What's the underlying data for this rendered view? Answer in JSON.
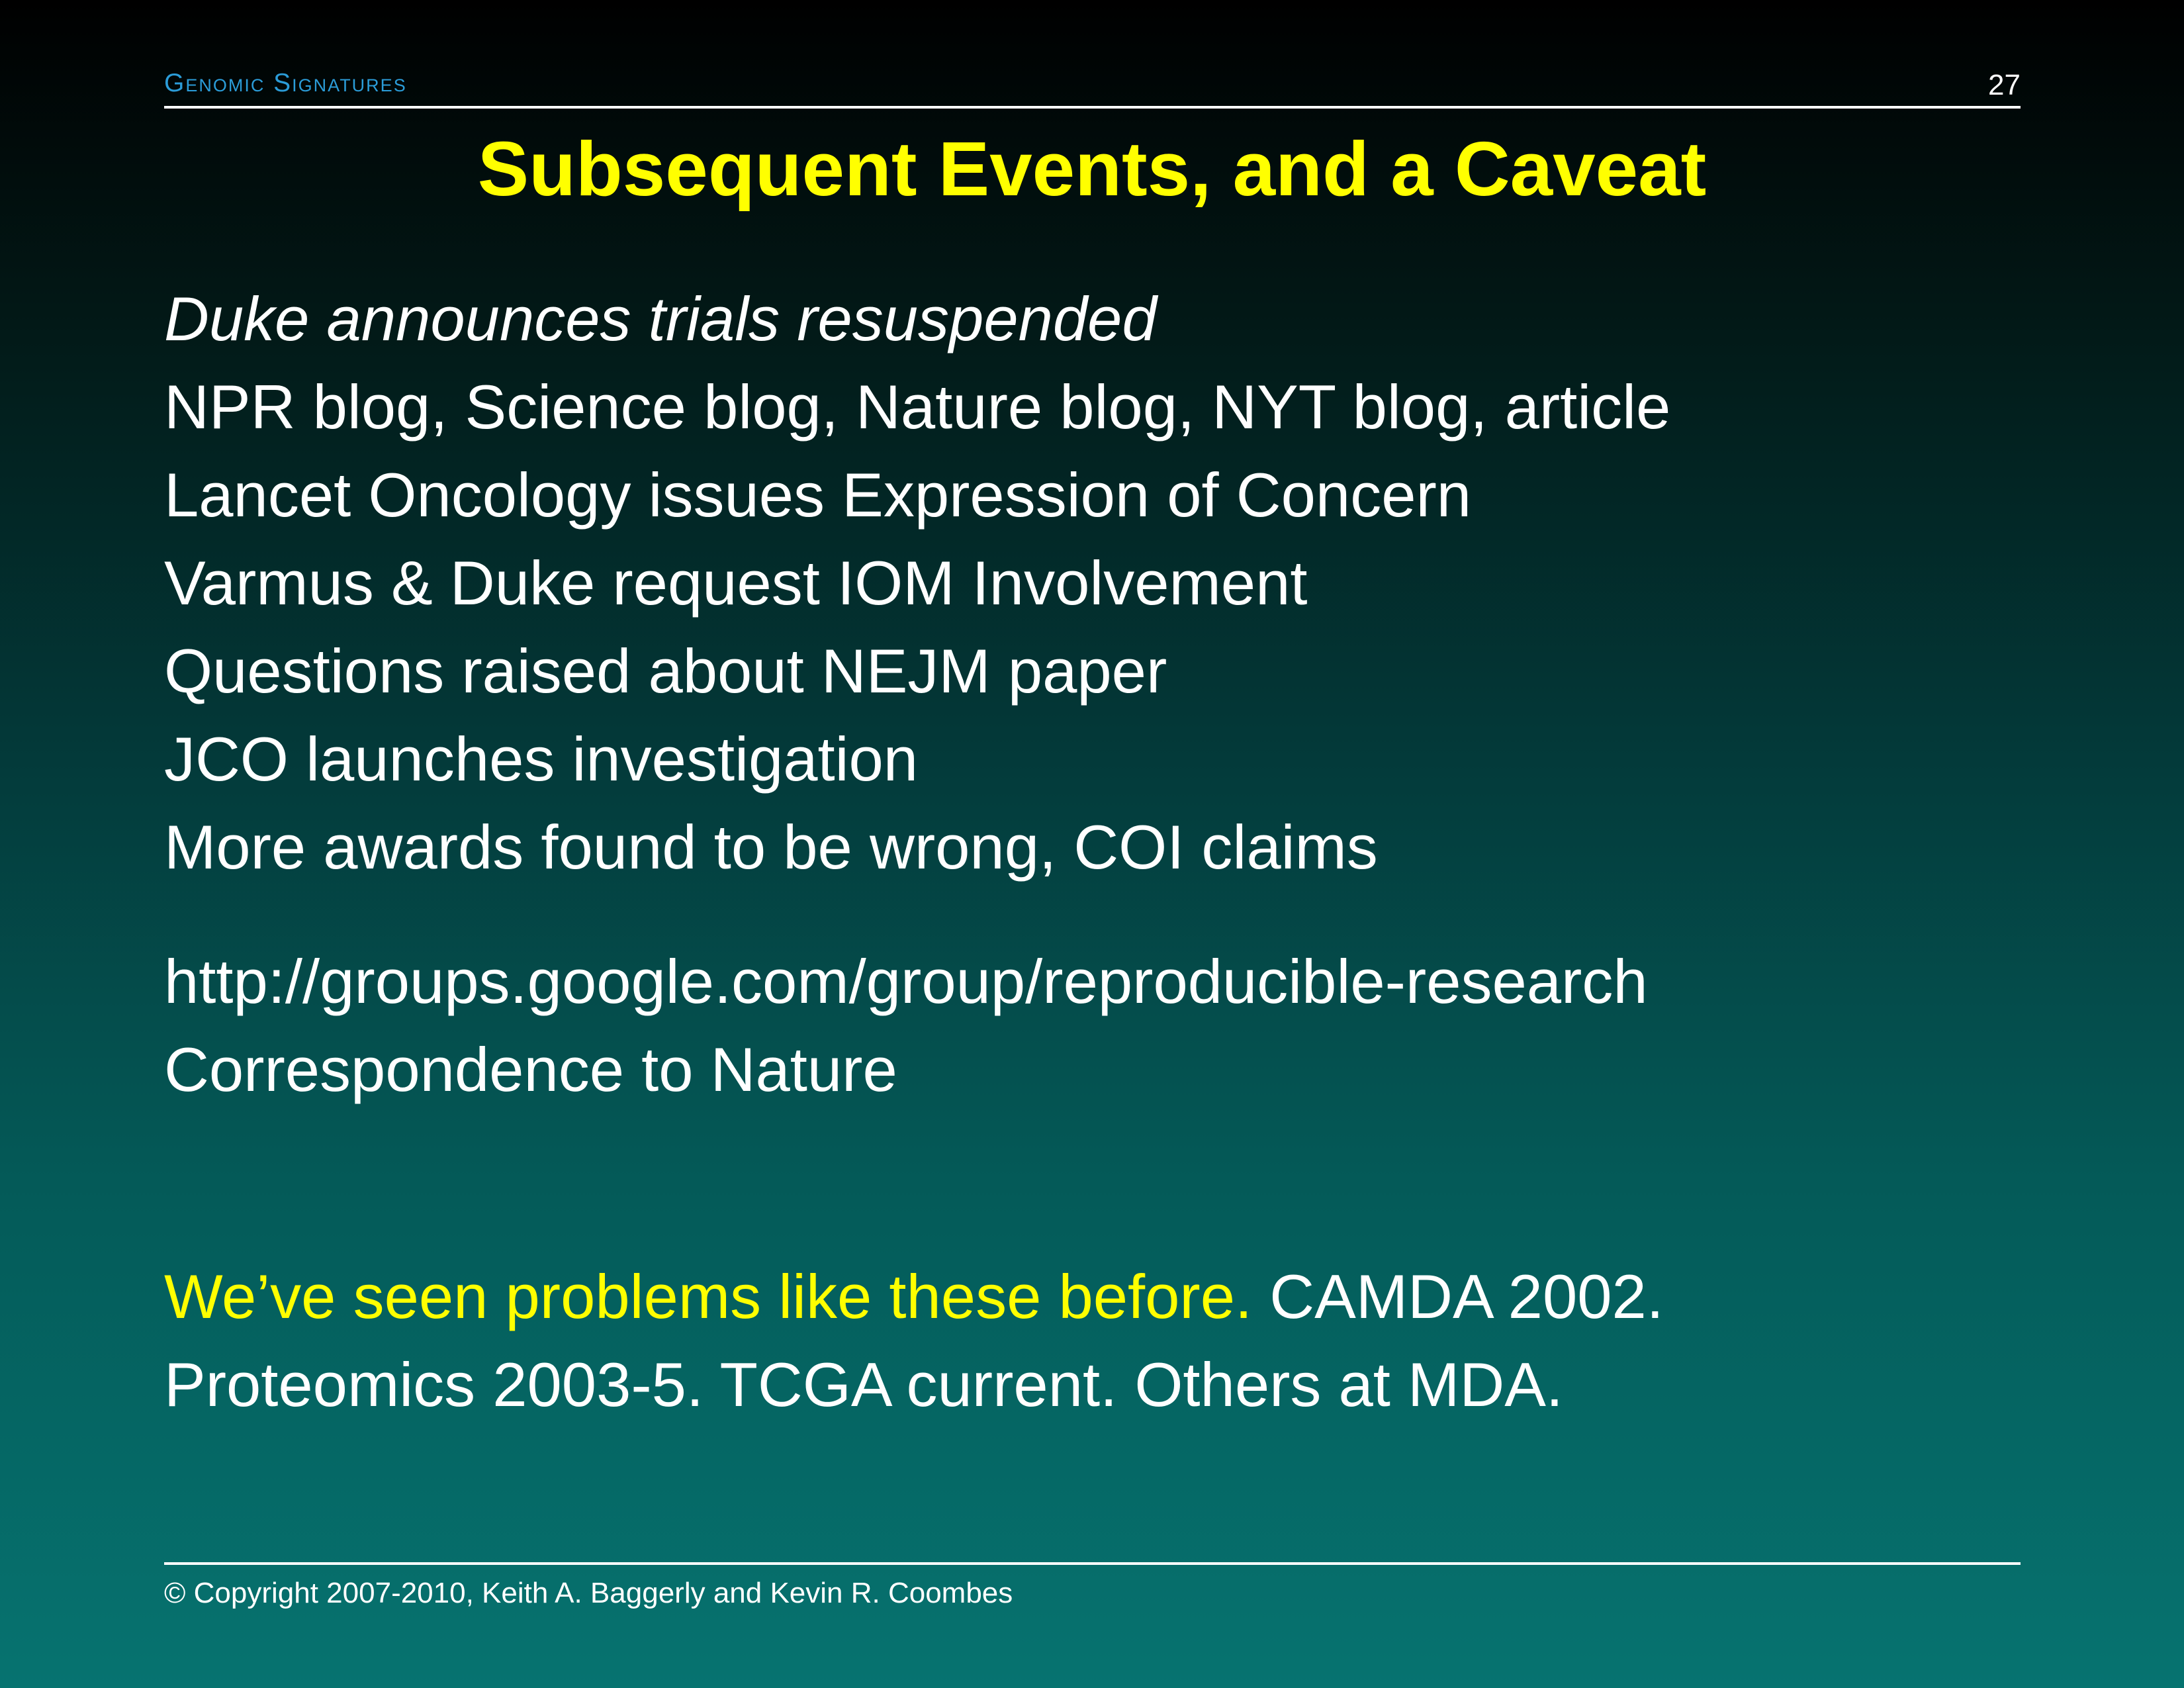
{
  "header": {
    "section_title": "Genomic Signatures",
    "page_number": "27"
  },
  "title": "Subsequent Events, and a Caveat",
  "events": [
    "Duke announces trials resuspended",
    "NPR blog, Science blog, Nature blog, NYT blog, article",
    "Lancet Oncology issues Expression of Concern",
    "Varmus & Duke request IOM Involvement",
    "Questions raised about NEJM paper",
    "JCO launches investigation",
    "More awards found to be wrong, COI claims"
  ],
  "links": [
    "http://groups.google.com/group/reproducible-research",
    "Correspondence to Nature"
  ],
  "caveat": {
    "highlight": "We’ve seen problems like these before.",
    "rest_line1": "CAMDA 2002.",
    "line2": "Proteomics 2003-5. TCGA current. Others at MDA."
  },
  "footer": {
    "copyright": "© Copyright 2007-2010, Keith A. Baggerly and Kevin R. Coombes"
  },
  "colors": {
    "title": "#ffff00",
    "header_accent": "#2b9cd8",
    "text": "#ffffff"
  }
}
